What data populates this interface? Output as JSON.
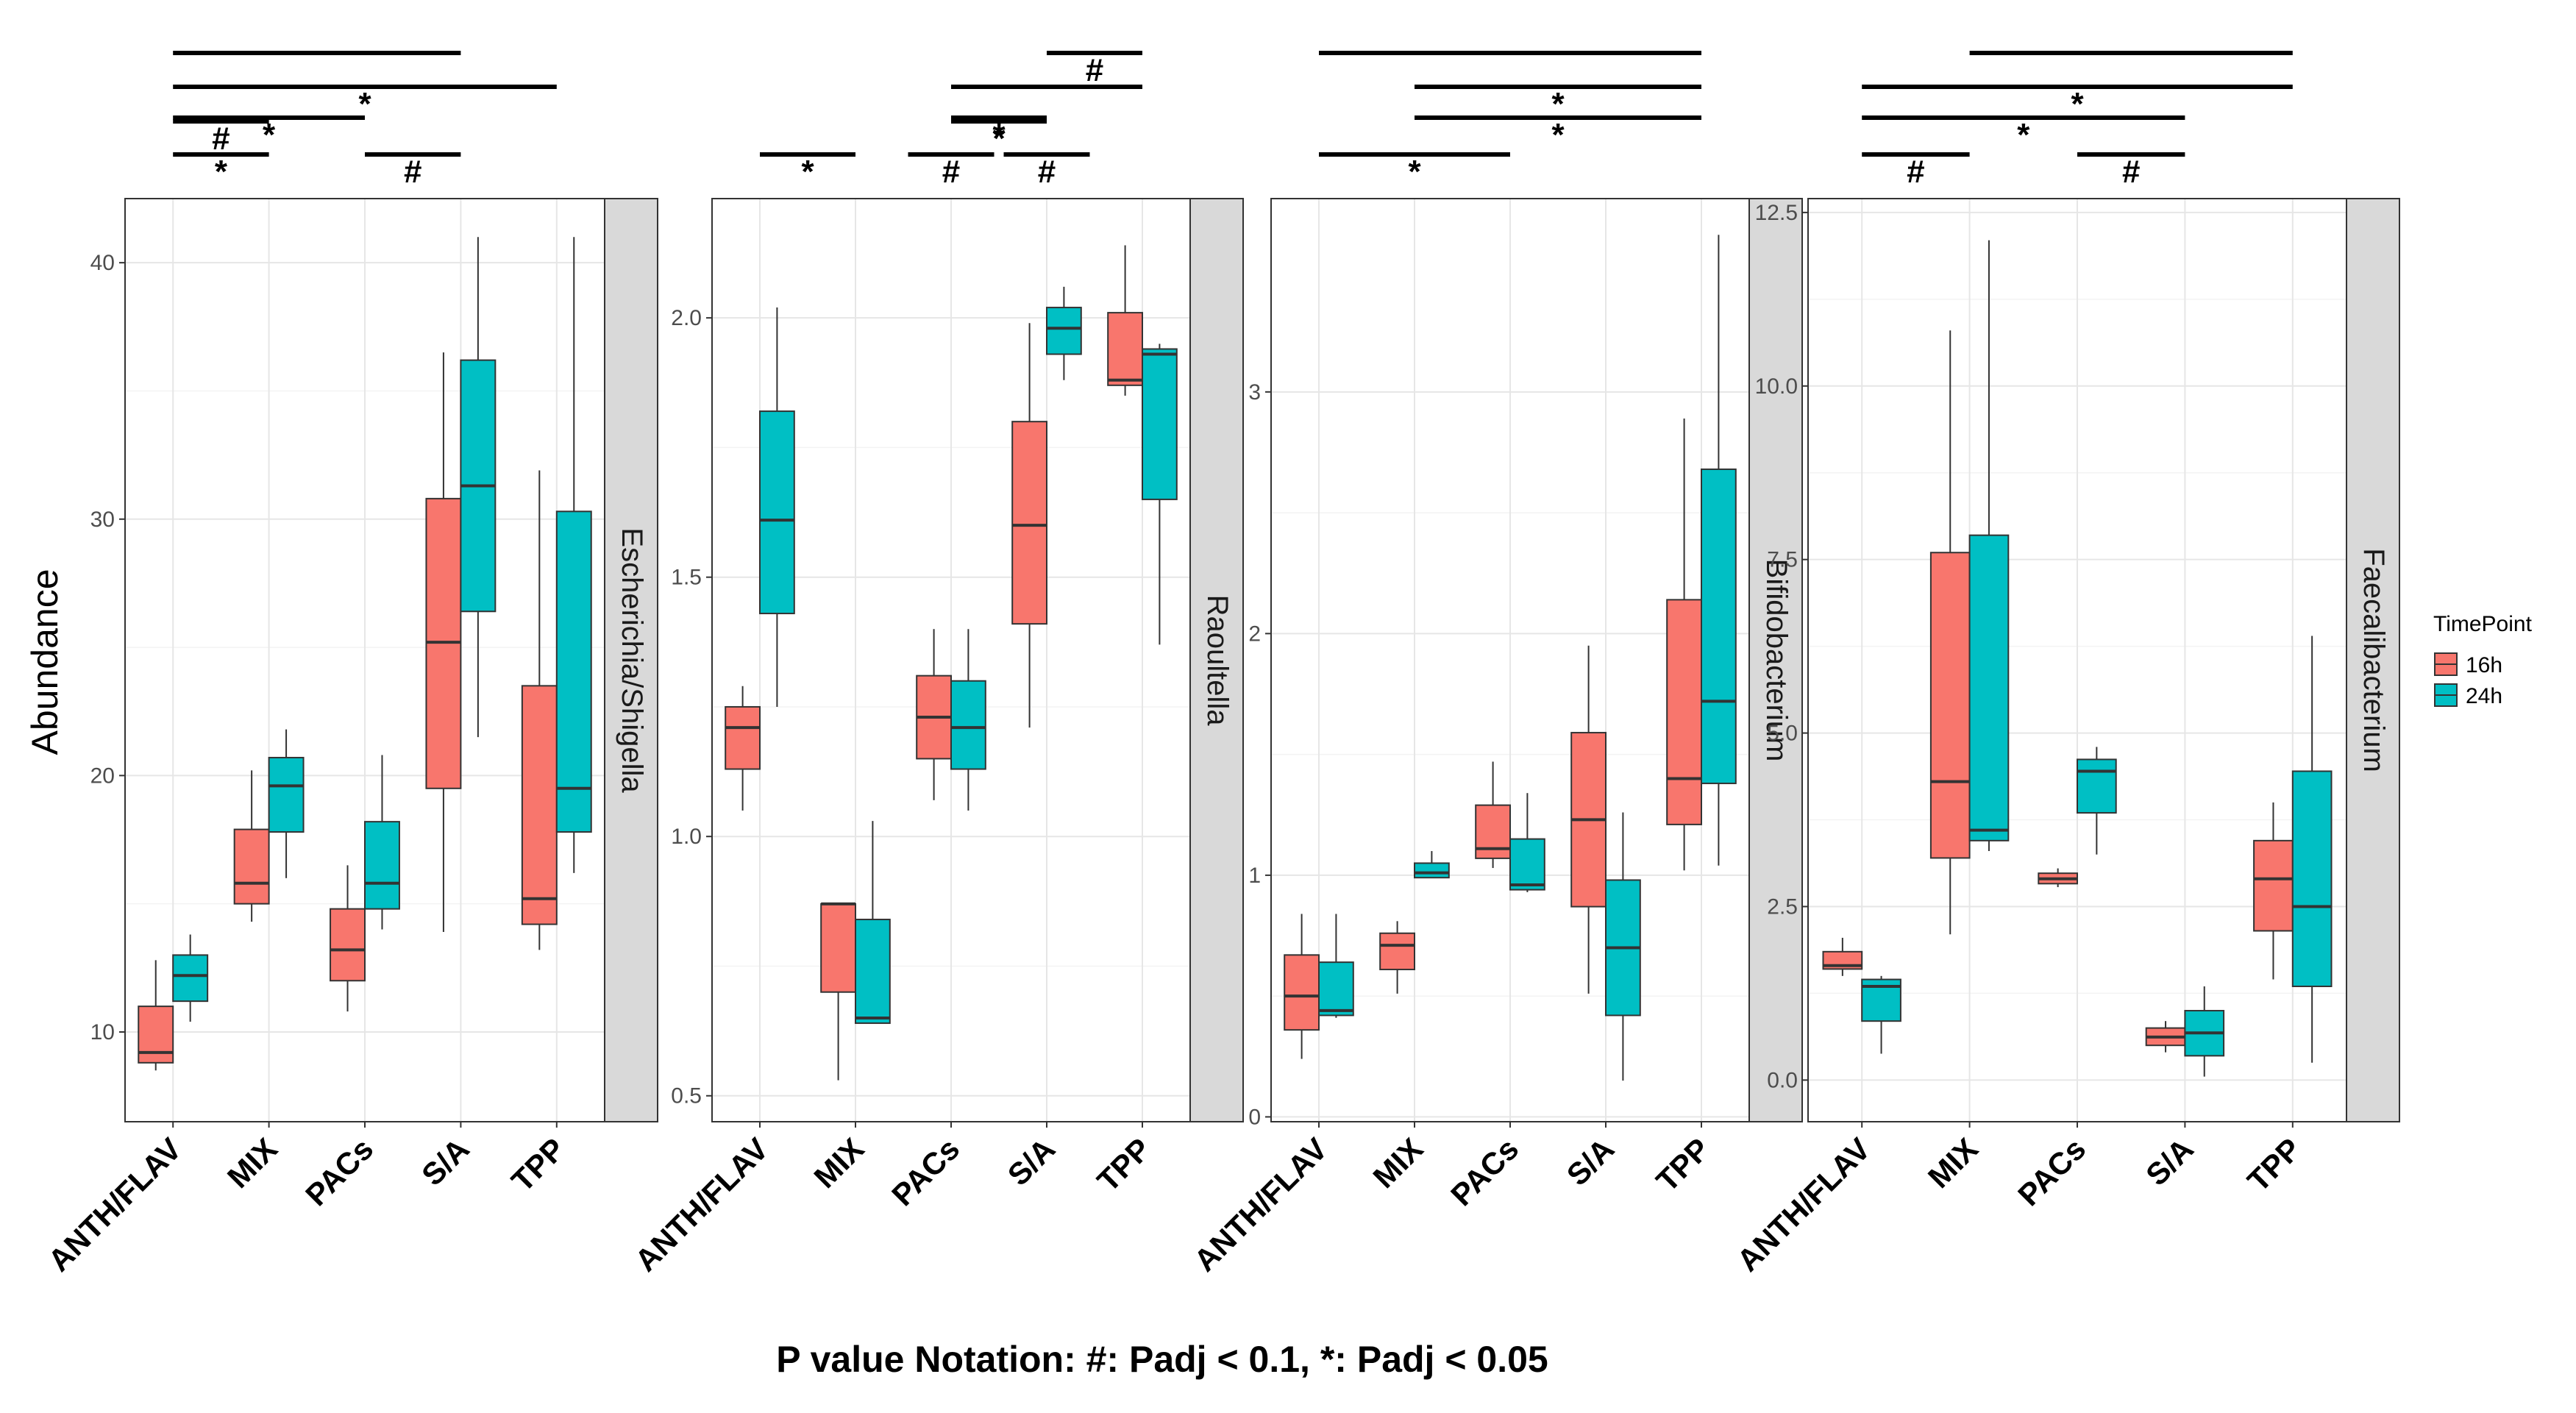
{
  "figure": {
    "ylabel": "Abundance",
    "footnote": "P value Notation: #: Padj < 0.1, *: Padj < 0.05",
    "legend": {
      "title": "TimePoint",
      "entries": [
        {
          "label": "16h",
          "color": "#F8766D"
        },
        {
          "label": "24h",
          "color": "#00BFC4"
        }
      ]
    }
  },
  "chart_data": [
    {
      "type": "box",
      "title": "Escherichia/Shigella",
      "categories": [
        "ANTH/FLAV",
        "MIX",
        "PACs",
        "S/A",
        "TPP"
      ],
      "series_names": [
        "16h",
        "24h"
      ],
      "ylim": [
        6.5,
        42.5
      ],
      "yticks": [
        10,
        20,
        30,
        40
      ],
      "ytick_labels": [
        "10",
        "20",
        "30",
        "40"
      ],
      "boxes": [
        {
          "category": "ANTH/FLAV",
          "series": "16h",
          "whisker_low": 8.5,
          "q1": 8.8,
          "median": 9.2,
          "q3": 11.0,
          "whisker_high": 12.8
        },
        {
          "category": "ANTH/FLAV",
          "series": "24h",
          "whisker_low": 10.4,
          "q1": 11.2,
          "median": 12.2,
          "q3": 13.0,
          "whisker_high": 13.8
        },
        {
          "category": "MIX",
          "series": "16h",
          "whisker_low": 14.3,
          "q1": 15.0,
          "median": 15.8,
          "q3": 17.9,
          "whisker_high": 20.2
        },
        {
          "category": "MIX",
          "series": "24h",
          "whisker_low": 16.0,
          "q1": 17.8,
          "median": 19.6,
          "q3": 20.7,
          "whisker_high": 21.8
        },
        {
          "category": "PACs",
          "series": "16h",
          "whisker_low": 10.8,
          "q1": 12.0,
          "median": 13.2,
          "q3": 14.8,
          "whisker_high": 16.5
        },
        {
          "category": "PACs",
          "series": "24h",
          "whisker_low": 14.0,
          "q1": 14.8,
          "median": 15.8,
          "q3": 18.2,
          "whisker_high": 20.8
        },
        {
          "category": "S/A",
          "series": "16h",
          "whisker_low": 13.9,
          "q1": 19.5,
          "median": 25.2,
          "q3": 30.8,
          "whisker_high": 36.5
        },
        {
          "category": "S/A",
          "series": "24h",
          "whisker_low": 21.5,
          "q1": 26.4,
          "median": 31.3,
          "q3": 36.2,
          "whisker_high": 41.0
        },
        {
          "category": "TPP",
          "series": "16h",
          "whisker_low": 13.2,
          "q1": 14.2,
          "median": 15.2,
          "q3": 23.5,
          "whisker_high": 31.9
        },
        {
          "category": "TPP",
          "series": "24h",
          "whisker_low": 16.2,
          "q1": 17.8,
          "median": 19.5,
          "q3": 30.3,
          "whisker_high": 41.0
        }
      ],
      "significance": [
        {
          "from": "ANTH/FLAV",
          "to": "S/A",
          "label": "",
          "level": 6
        },
        {
          "from": "ANTH/FLAV",
          "to": "TPP",
          "label": "*",
          "level": 5
        },
        {
          "from": "ANTH/FLAV",
          "to": "PACs",
          "label": "*",
          "level": 4
        },
        {
          "from": "ANTH/FLAV",
          "to": "MIX",
          "label": "#",
          "level": 3
        },
        {
          "from": "ANTH/FLAV",
          "to": "MIX",
          "label": "*",
          "level": 1
        },
        {
          "from": "PACs",
          "to": "S/A",
          "label": "#",
          "level": 1
        }
      ]
    },
    {
      "type": "box",
      "title": "Raoultella",
      "categories": [
        "ANTH/FLAV",
        "MIX",
        "PACs",
        "S/A",
        "TPP"
      ],
      "series_names": [
        "16h",
        "24h"
      ],
      "ylim": [
        0.45,
        2.23
      ],
      "yticks": [
        0.5,
        1.0,
        1.5,
        2.0
      ],
      "ytick_labels": [
        "0.5",
        "1.0",
        "1.5",
        "2.0"
      ],
      "boxes": [
        {
          "category": "ANTH/FLAV",
          "series": "16h",
          "whisker_low": 1.05,
          "q1": 1.13,
          "median": 1.21,
          "q3": 1.25,
          "whisker_high": 1.29
        },
        {
          "category": "ANTH/FLAV",
          "series": "24h",
          "whisker_low": 1.25,
          "q1": 1.43,
          "median": 1.61,
          "q3": 1.82,
          "whisker_high": 2.02
        },
        {
          "category": "MIX",
          "series": "16h",
          "whisker_low": 0.53,
          "q1": 0.7,
          "median": 0.87,
          "q3": 0.87,
          "whisker_high": 0.87
        },
        {
          "category": "MIX",
          "series": "24h",
          "whisker_low": 0.64,
          "q1": 0.64,
          "median": 0.65,
          "q3": 0.84,
          "whisker_high": 1.03
        },
        {
          "category": "PACs",
          "series": "16h",
          "whisker_low": 1.07,
          "q1": 1.15,
          "median": 1.23,
          "q3": 1.31,
          "whisker_high": 1.4
        },
        {
          "category": "PACs",
          "series": "24h",
          "whisker_low": 1.05,
          "q1": 1.13,
          "median": 1.21,
          "q3": 1.3,
          "whisker_high": 1.4
        },
        {
          "category": "S/A",
          "series": "16h",
          "whisker_low": 1.21,
          "q1": 1.41,
          "median": 1.6,
          "q3": 1.8,
          "whisker_high": 1.99
        },
        {
          "category": "S/A",
          "series": "24h",
          "whisker_low": 1.88,
          "q1": 1.93,
          "median": 1.98,
          "q3": 2.02,
          "whisker_high": 2.06
        },
        {
          "category": "TPP",
          "series": "16h",
          "whisker_low": 1.85,
          "q1": 1.87,
          "median": 1.88,
          "q3": 2.01,
          "whisker_high": 2.14
        },
        {
          "category": "TPP",
          "series": "24h",
          "whisker_low": 1.37,
          "q1": 1.65,
          "median": 1.93,
          "q3": 1.94,
          "whisker_high": 1.95
        }
      ],
      "significance": [
        {
          "from": "S/A",
          "to": "TPP",
          "label": "#",
          "level": 6
        },
        {
          "from": "PACs",
          "to": "TPP",
          "label": "",
          "level": 5
        },
        {
          "from": "PACs",
          "to": "S/A",
          "label": "*",
          "level": 4
        },
        {
          "from": "PACs",
          "to": "S/A",
          "label": "*",
          "level": 3
        },
        {
          "from": "ANTH/FLAV",
          "to": "MIX",
          "label": "*",
          "level": 2
        },
        {
          "from": "PACs",
          "to": "PACs",
          "label": "#",
          "level": 2
        },
        {
          "from": "S/A",
          "to": "S/A",
          "label": "#",
          "level": 2
        }
      ]
    },
    {
      "type": "box",
      "title": "Bifidobacterium",
      "categories": [
        "ANTH/FLAV",
        "MIX",
        "PACs",
        "S/A",
        "TPP"
      ],
      "series_names": [
        "16h",
        "24h"
      ],
      "ylim": [
        -0.02,
        3.8
      ],
      "yticks": [
        0,
        1,
        2,
        3
      ],
      "ytick_labels": [
        "0",
        "1",
        "2",
        "3"
      ],
      "boxes": [
        {
          "category": "ANTH/FLAV",
          "series": "16h",
          "whisker_low": 0.24,
          "q1": 0.36,
          "median": 0.5,
          "q3": 0.67,
          "whisker_high": 0.84
        },
        {
          "category": "ANTH/FLAV",
          "series": "24h",
          "whisker_low": 0.41,
          "q1": 0.42,
          "median": 0.44,
          "q3": 0.64,
          "whisker_high": 0.84
        },
        {
          "category": "MIX",
          "series": "16h",
          "whisker_low": 0.51,
          "q1": 0.61,
          "median": 0.71,
          "q3": 0.76,
          "whisker_high": 0.81
        },
        {
          "category": "MIX",
          "series": "24h",
          "whisker_low": 0.99,
          "q1": 0.99,
          "median": 1.01,
          "q3": 1.05,
          "whisker_high": 1.1
        },
        {
          "category": "PACs",
          "series": "16h",
          "whisker_low": 1.03,
          "q1": 1.07,
          "median": 1.11,
          "q3": 1.29,
          "whisker_high": 1.47
        },
        {
          "category": "PACs",
          "series": "24h",
          "whisker_low": 0.93,
          "q1": 0.94,
          "median": 0.96,
          "q3": 1.15,
          "whisker_high": 1.34
        },
        {
          "category": "S/A",
          "series": "16h",
          "whisker_low": 0.51,
          "q1": 0.87,
          "median": 1.23,
          "q3": 1.59,
          "whisker_high": 1.95
        },
        {
          "category": "S/A",
          "series": "24h",
          "whisker_low": 0.15,
          "q1": 0.42,
          "median": 0.7,
          "q3": 0.98,
          "whisker_high": 1.26
        },
        {
          "category": "TPP",
          "series": "16h",
          "whisker_low": 1.02,
          "q1": 1.21,
          "median": 1.4,
          "q3": 2.14,
          "whisker_high": 2.89
        },
        {
          "category": "TPP",
          "series": "24h",
          "whisker_low": 1.04,
          "q1": 1.38,
          "median": 1.72,
          "q3": 2.68,
          "whisker_high": 3.65
        }
      ],
      "significance": [
        {
          "from": "ANTH/FLAV",
          "to": "TPP",
          "label": "",
          "level": 6
        },
        {
          "from": "MIX",
          "to": "TPP",
          "label": "*",
          "level": 5
        },
        {
          "from": "MIX",
          "to": "TPP",
          "label": "*",
          "level": 4
        },
        {
          "from": "ANTH/FLAV",
          "to": "PACs",
          "label": "*",
          "level": 2
        }
      ]
    },
    {
      "type": "box",
      "title": "Faecalibacterium",
      "categories": [
        "ANTH/FLAV",
        "MIX",
        "PACs",
        "S/A",
        "TPP"
      ],
      "series_names": [
        "16h",
        "24h"
      ],
      "ylim": [
        -0.6,
        12.7
      ],
      "yticks": [
        0.0,
        2.5,
        5.0,
        7.5,
        10.0,
        12.5
      ],
      "ytick_labels": [
        "0.0",
        "2.5",
        "5.0",
        "7.5",
        "10.0",
        "12.5"
      ],
      "boxes": [
        {
          "category": "ANTH/FLAV",
          "series": "16h",
          "whisker_low": 1.5,
          "q1": 1.6,
          "median": 1.65,
          "q3": 1.85,
          "whisker_high": 2.05
        },
        {
          "category": "ANTH/FLAV",
          "series": "24h",
          "whisker_low": 0.38,
          "q1": 0.85,
          "median": 1.35,
          "q3": 1.45,
          "whisker_high": 1.5
        },
        {
          "category": "MIX",
          "series": "16h",
          "whisker_low": 2.1,
          "q1": 3.2,
          "median": 4.3,
          "q3": 7.6,
          "whisker_high": 10.8
        },
        {
          "category": "MIX",
          "series": "24h",
          "whisker_low": 3.3,
          "q1": 3.45,
          "median": 3.6,
          "q3": 7.85,
          "whisker_high": 12.1
        },
        {
          "category": "PACs",
          "series": "16h",
          "whisker_low": 2.78,
          "q1": 2.83,
          "median": 2.9,
          "q3": 2.98,
          "whisker_high": 3.05
        },
        {
          "category": "PACs",
          "series": "24h",
          "whisker_low": 3.25,
          "q1": 3.85,
          "median": 4.45,
          "q3": 4.62,
          "whisker_high": 4.8
        },
        {
          "category": "S/A",
          "series": "16h",
          "whisker_low": 0.4,
          "q1": 0.5,
          "median": 0.62,
          "q3": 0.75,
          "whisker_high": 0.85
        },
        {
          "category": "S/A",
          "series": "24h",
          "whisker_low": 0.05,
          "q1": 0.35,
          "median": 0.68,
          "q3": 1.0,
          "whisker_high": 1.35
        },
        {
          "category": "TPP",
          "series": "16h",
          "whisker_low": 1.45,
          "q1": 2.15,
          "median": 2.9,
          "q3": 3.45,
          "whisker_high": 4.0
        },
        {
          "category": "TPP",
          "series": "24h",
          "whisker_low": 0.25,
          "q1": 1.35,
          "median": 2.5,
          "q3": 4.45,
          "whisker_high": 6.4
        }
      ],
      "significance": [
        {
          "from": "MIX",
          "to": "TPP",
          "label": "",
          "level": 6
        },
        {
          "from": "ANTH/FLAV",
          "to": "TPP",
          "label": "*",
          "level": 5
        },
        {
          "from": "ANTH/FLAV",
          "to": "S/A",
          "label": "*",
          "level": 4
        },
        {
          "from": "ANTH/FLAV",
          "to": "MIX",
          "label": "#",
          "level": 2
        },
        {
          "from": "PACs",
          "to": "S/A",
          "label": "#",
          "level": 2
        }
      ]
    }
  ]
}
